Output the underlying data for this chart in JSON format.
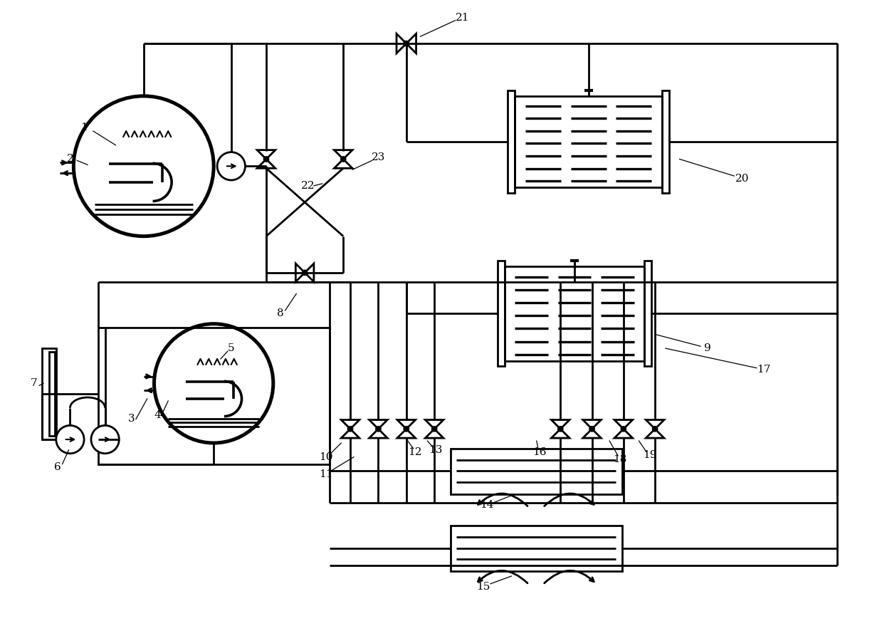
{
  "bg": "#ffffff",
  "lc": "#000000",
  "lw": 2.0,
  "fw": 12.39,
  "fh": 8.72
}
